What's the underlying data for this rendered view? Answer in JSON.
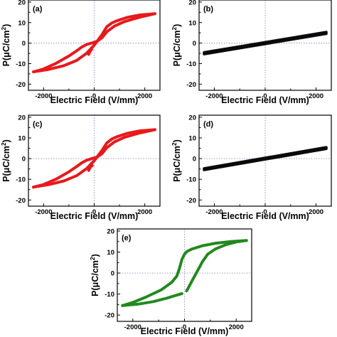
{
  "figure": {
    "xlabel": "Electric Field (V/mm)",
    "ylabel_main": "P(μC/cm",
    "ylabel_sup": "2",
    "ylabel_close": ")"
  },
  "chart_data": [
    {
      "type": "line",
      "panel_label": "(a)",
      "color": "#e8191c",
      "xlim": [
        -2600,
        2600
      ],
      "ylim": [
        -23,
        21
      ],
      "xticks": [
        -2000,
        0,
        2000
      ],
      "yticks": [
        -20,
        -10,
        0,
        10,
        20
      ],
      "grid": false,
      "zero_lines": true,
      "series": [
        {
          "x": [
            -2400,
            -1800,
            -1200,
            -700,
            -300,
            0,
            300,
            500,
            700,
            900,
            1300,
            1800,
            2400
          ],
          "y": [
            -14.0,
            -12.8,
            -11.0,
            -8.5,
            -5.0,
            -1.0,
            4.0,
            8.0,
            9.8,
            10.9,
            12.5,
            13.7,
            14.3
          ]
        },
        {
          "x": [
            2400,
            1800,
            1200,
            800,
            500,
            300,
            100,
            -100,
            -300,
            -500,
            -700,
            -1000,
            -1500,
            -2000,
            -2400
          ],
          "y": [
            14.3,
            12.6,
            10.5,
            8.3,
            5.5,
            2.5,
            0.8,
            0.0,
            -0.7,
            -2.0,
            -3.8,
            -6.3,
            -9.8,
            -12.6,
            -14.0
          ]
        },
        {
          "x": [
            -220,
            -160,
            -100
          ],
          "y": [
            -5.5,
            -4.0,
            -3.0
          ]
        }
      ]
    },
    {
      "type": "line",
      "panel_label": "(b)",
      "color": "#0a0a0a",
      "xlim": [
        -2600,
        2600
      ],
      "ylim": [
        -23,
        21
      ],
      "xticks": [
        -2000,
        0,
        2000
      ],
      "yticks": [
        -20,
        -10,
        0,
        10,
        20
      ],
      "grid": false,
      "zero_lines": true,
      "series": [
        {
          "x": [
            -2400,
            2400
          ],
          "y": [
            -5.3,
            4.6
          ]
        },
        {
          "x": [
            2400,
            -2400
          ],
          "y": [
            5.3,
            -4.6
          ]
        }
      ]
    },
    {
      "type": "line",
      "panel_label": "(c)",
      "color": "#e8191c",
      "xlim": [
        -2600,
        2600
      ],
      "ylim": [
        -23,
        21
      ],
      "xticks": [
        -2000,
        0,
        2000
      ],
      "yticks": [
        -20,
        -10,
        0,
        10,
        20
      ],
      "grid": false,
      "zero_lines": true,
      "series": [
        {
          "x": [
            -2400,
            -1800,
            -1200,
            -700,
            -300,
            0,
            300,
            500,
            700,
            900,
            1300,
            1800,
            2400
          ],
          "y": [
            -13.8,
            -12.6,
            -10.8,
            -8.3,
            -4.8,
            -1.0,
            3.8,
            7.6,
            9.5,
            10.6,
            12.2,
            13.4,
            14.0
          ]
        },
        {
          "x": [
            2400,
            1800,
            1200,
            800,
            500,
            300,
            100,
            -100,
            -300,
            -500,
            -700,
            -1000,
            -1500,
            -2000,
            -2400
          ],
          "y": [
            14.0,
            12.4,
            10.3,
            8.1,
            5.3,
            2.3,
            0.7,
            0.0,
            -0.8,
            -2.1,
            -3.9,
            -6.4,
            -9.9,
            -12.5,
            -13.8
          ]
        },
        {
          "x": [
            -220,
            -160,
            -80
          ],
          "y": [
            -5.7,
            -4.3,
            -3.3
          ]
        }
      ]
    },
    {
      "type": "line",
      "panel_label": "(d)",
      "color": "#0a0a0a",
      "xlim": [
        -2600,
        2600
      ],
      "ylim": [
        -23,
        21
      ],
      "xticks": [
        -2000,
        0,
        2000
      ],
      "yticks": [
        -20,
        -10,
        0,
        10,
        20
      ],
      "grid": false,
      "zero_lines": true,
      "series": [
        {
          "x": [
            -2400,
            2400
          ],
          "y": [
            -5.4,
            4.8
          ]
        },
        {
          "x": [
            2400,
            -2400
          ],
          "y": [
            5.4,
            -4.8
          ]
        }
      ]
    },
    {
      "type": "line",
      "panel_label": "(e)",
      "color": "#22891e",
      "xlim": [
        -2600,
        2600
      ],
      "ylim": [
        -23,
        21
      ],
      "xticks": [
        -2000,
        0,
        2000
      ],
      "yticks": [
        -20,
        -10,
        0,
        10,
        20
      ],
      "grid": false,
      "zero_lines": true,
      "series": [
        {
          "x": [
            2400,
            1800,
            1200,
            700,
            300,
            100,
            0,
            -100,
            -200,
            -300,
            -500,
            -900,
            -1500,
            -2000,
            -2400
          ],
          "y": [
            15.5,
            15.0,
            14.2,
            13.0,
            11.5,
            10.3,
            9.0,
            6.5,
            2.0,
            -1.5,
            -4.5,
            -8.0,
            -11.5,
            -14.0,
            -15.5
          ]
        },
        {
          "x": [
            -2400,
            -1800,
            -1200,
            -700,
            -300,
            -100
          ],
          "y": [
            -15.5,
            -14.8,
            -13.6,
            -12.0,
            -10.5,
            -9.8
          ]
        },
        {
          "x": [
            80,
            150,
            300,
            500,
            700,
            900,
            1200,
            1600,
            2000,
            2400
          ],
          "y": [
            -8.5,
            -7.0,
            -3.5,
            1.0,
            5.5,
            9.0,
            11.5,
            13.5,
            14.8,
            15.5
          ]
        }
      ]
    }
  ]
}
